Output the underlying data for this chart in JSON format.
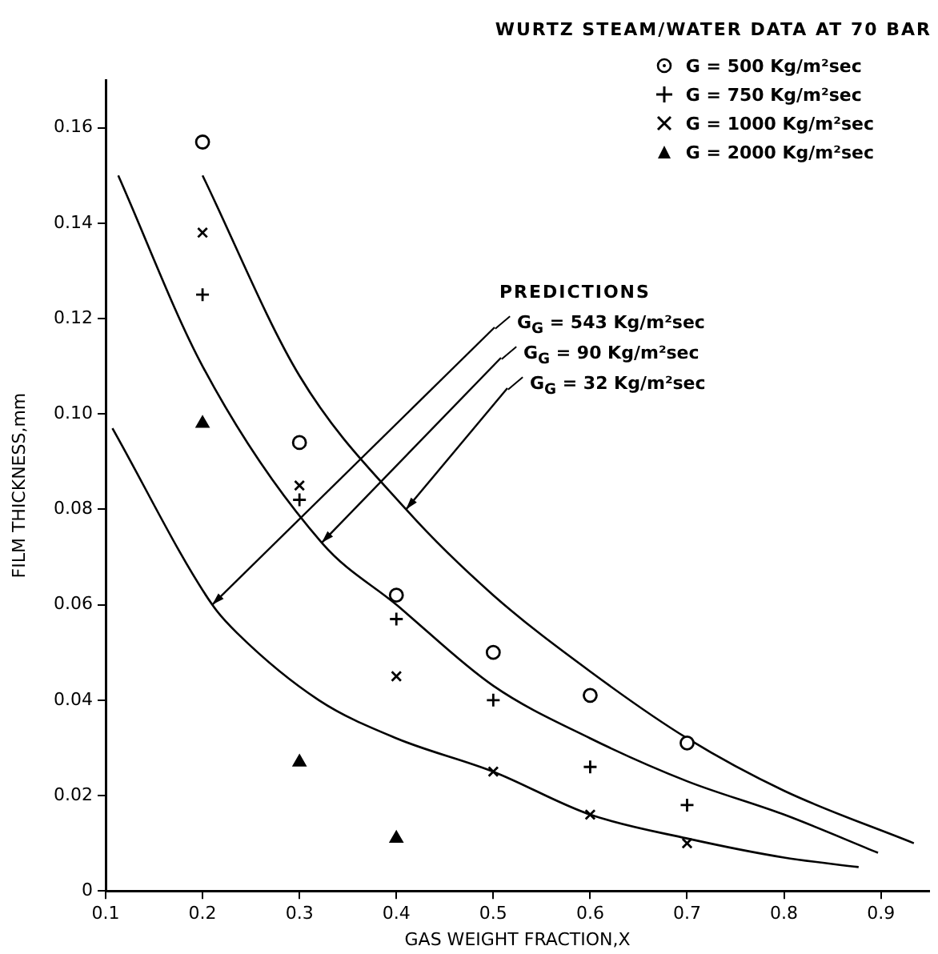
{
  "chart_data": {
    "type": "scatter",
    "title": "WURTZ STEAM/WATER DATA AT 70 BAR",
    "xlabel": "GAS WEIGHT FRACTION,X",
    "ylabel": "FILM THICKNESS,mm",
    "xlim": [
      0.1,
      0.95
    ],
    "xticks": [
      0.1,
      0.2,
      0.3,
      0.4,
      0.5,
      0.6,
      0.7,
      0.8,
      0.9
    ],
    "ylim": [
      0,
      0.17
    ],
    "yticks": [
      0,
      0.02,
      0.04,
      0.06,
      0.08,
      {
        "value": 0.1,
        "label": "0.10"
      },
      0.12,
      0.14,
      0.16
    ],
    "legend": "top right",
    "annotations": [
      "PREDICTIONS"
    ],
    "series": [
      {
        "name": "G = 500 Kg/m²sec",
        "marker": "circle",
        "color": "#000000",
        "x": [
          0.2,
          0.3,
          0.4,
          0.5,
          0.6,
          0.7
        ],
        "values": [
          0.157,
          0.094,
          0.062,
          0.05,
          0.041,
          0.031
        ]
      },
      {
        "name": "G = 750 Kg/m²sec",
        "marker": "cross",
        "color": "#000000",
        "x": [
          0.2,
          0.3,
          0.4,
          0.5,
          0.6,
          0.7
        ],
        "values": [
          0.125,
          0.082,
          0.057,
          0.04,
          0.026,
          0.018
        ]
      },
      {
        "name": "G = 1000 Kg/m²sec",
        "marker": "x",
        "color": "#000000",
        "x": [
          0.2,
          0.3,
          0.4,
          0.5,
          0.6,
          0.7
        ],
        "values": [
          0.138,
          0.085,
          0.045,
          0.025,
          0.016,
          0.01
        ]
      },
      {
        "name": "G = 2000 Kg/m²sec",
        "marker": "triangle",
        "color": "#000000",
        "x": [
          0.2,
          0.3,
          0.4
        ],
        "values": [
          0.098,
          0.027,
          0.011
        ]
      },
      {
        "name": "G$_{G}$ = 543 Kg/m²sec",
        "type": "line",
        "marker": "none",
        "line_style": "solid",
        "color": "#000000",
        "x": [
          0.107,
          0.21,
          0.236,
          0.32,
          0.4,
          0.5,
          0.6,
          0.7,
          0.8,
          0.877
        ],
        "values": [
          0.097,
          0.06,
          0.054,
          0.04,
          0.032,
          0.025,
          0.016,
          0.011,
          0.007,
          0.005
        ]
      },
      {
        "name": "G$_{G}$ = 90 Kg/m²sec",
        "type": "line",
        "marker": "none",
        "line_style": "solid",
        "color": "#000000",
        "x": [
          0.113,
          0.2,
          0.323,
          0.4,
          0.5,
          0.6,
          0.7,
          0.8,
          0.897
        ],
        "values": [
          0.15,
          0.11,
          0.073,
          0.06,
          0.043,
          0.032,
          0.023,
          0.016,
          0.008
        ]
      },
      {
        "name": "G$_{G}$ = 32 Kg/m²sec",
        "type": "line",
        "marker": "none",
        "line_style": "solid",
        "color": "#000000",
        "x": [
          0.2,
          0.3,
          0.41,
          0.5,
          0.6,
          0.7,
          0.8,
          0.934
        ],
        "values": [
          0.15,
          0.108,
          0.08,
          0.062,
          0.046,
          0.032,
          0.021,
          0.01
        ]
      }
    ]
  }
}
